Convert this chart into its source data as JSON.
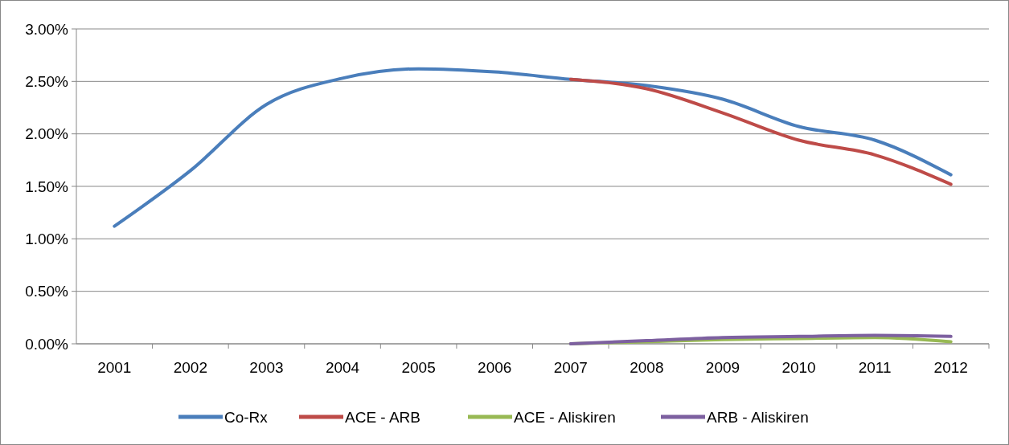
{
  "chart_data": {
    "type": "line",
    "categories": [
      "2001",
      "2002",
      "2003",
      "2004",
      "2005",
      "2006",
      "2007",
      "2008",
      "2009",
      "2010",
      "2011",
      "2012"
    ],
    "series": [
      {
        "name": "Co-Rx",
        "color": "#4a7ebb",
        "values": [
          1.12,
          1.65,
          2.28,
          2.53,
          2.62,
          2.59,
          2.52,
          2.46,
          2.33,
          2.07,
          1.94,
          1.61
        ]
      },
      {
        "name": "ACE - ARB",
        "color": "#be4b48",
        "values": [
          null,
          null,
          null,
          null,
          null,
          null,
          2.52,
          2.43,
          2.2,
          1.94,
          1.8,
          1.52
        ]
      },
      {
        "name": "ACE - Aliskiren",
        "color": "#98b954",
        "values": [
          null,
          null,
          null,
          null,
          null,
          null,
          0,
          0.02,
          0.04,
          0.05,
          0.06,
          0.02
        ]
      },
      {
        "name": "ARB - Aliskiren",
        "color": "#7d60a0",
        "values": [
          null,
          null,
          null,
          null,
          null,
          null,
          0,
          0.03,
          0.06,
          0.07,
          0.08,
          0.07
        ]
      }
    ],
    "ylim": [
      0,
      3
    ],
    "yticks": [
      {
        "value": 0,
        "label": "0.00%"
      },
      {
        "value": 0.5,
        "label": "0.50%"
      },
      {
        "value": 1,
        "label": "1.00%"
      },
      {
        "value": 1.5,
        "label": "1.50%"
      },
      {
        "value": 2,
        "label": "2.00%"
      },
      {
        "value": 2.5,
        "label": "2.50%"
      },
      {
        "value": 3,
        "label": "3.00%"
      }
    ],
    "grid": "y",
    "legend": "bottom",
    "line_style": "solid"
  }
}
